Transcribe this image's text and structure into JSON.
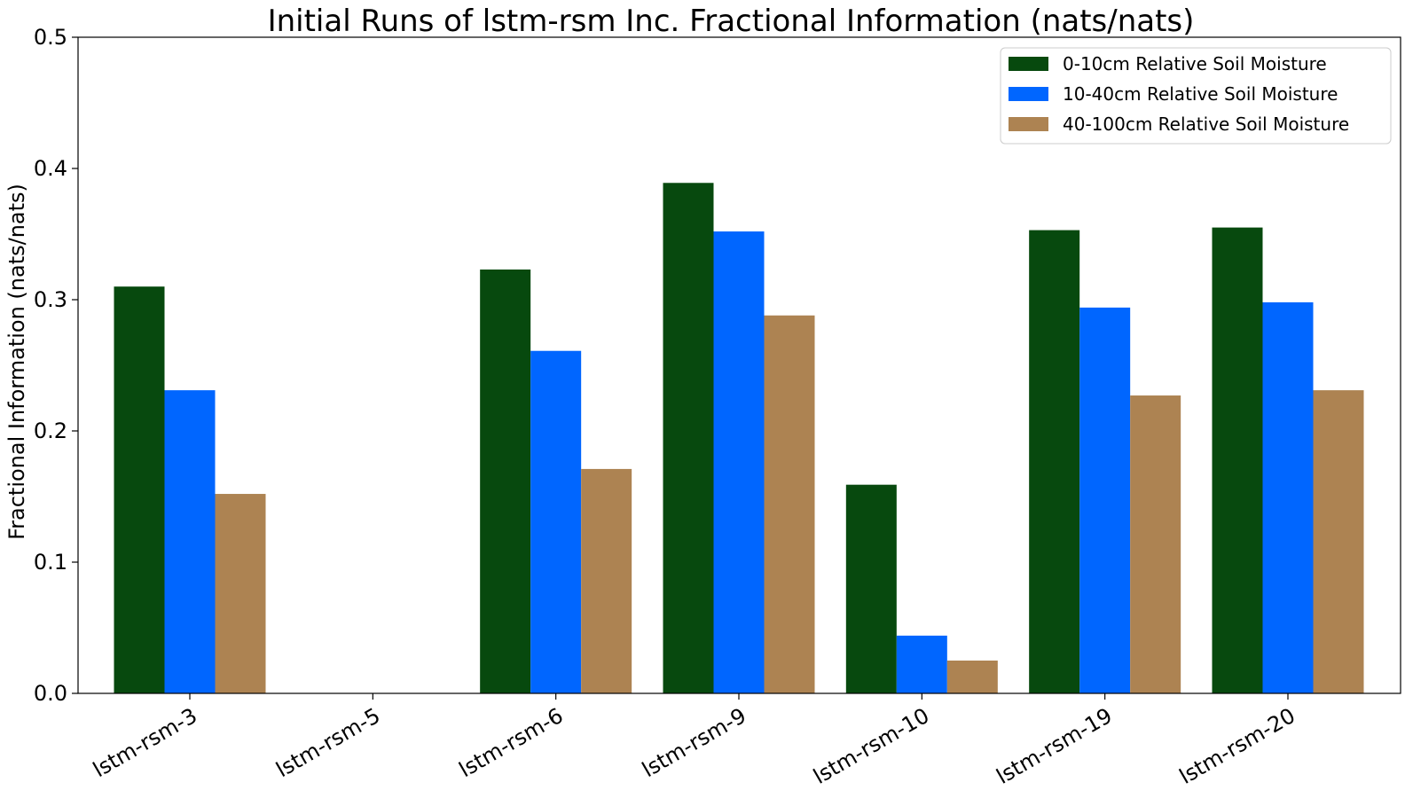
{
  "chart_data": {
    "type": "bar",
    "title": "Initial Runs of lstm-rsm Inc. Fractional Information (nats/nats)",
    "xlabel": "",
    "ylabel": "Fractional Information (nats/nats)",
    "ylim": [
      0,
      0.5
    ],
    "yticks": [
      "0.0",
      "0.1",
      "0.2",
      "0.3",
      "0.4",
      "0.5"
    ],
    "grid": false,
    "legend_position": "top-right",
    "categories": [
      "lstm-rsm-3",
      "lstm-rsm-5",
      "lstm-rsm-6",
      "lstm-rsm-9",
      "lstm-rsm-10",
      "lstm-rsm-19",
      "lstm-rsm-20"
    ],
    "series": [
      {
        "name": "0-10cm Relative Soil Moisture",
        "color": "#07490e",
        "values": [
          0.31,
          0.0,
          0.323,
          0.389,
          0.159,
          0.353,
          0.355
        ]
      },
      {
        "name": "10-40cm Relative Soil Moisture",
        "color": "#0066ff",
        "values": [
          0.231,
          0.0,
          0.261,
          0.352,
          0.044,
          0.294,
          0.298
        ]
      },
      {
        "name": "40-100cm Relative Soil Moisture",
        "color": "#ad8352",
        "values": [
          0.152,
          0.0,
          0.171,
          0.288,
          0.025,
          0.227,
          0.231
        ]
      }
    ]
  }
}
